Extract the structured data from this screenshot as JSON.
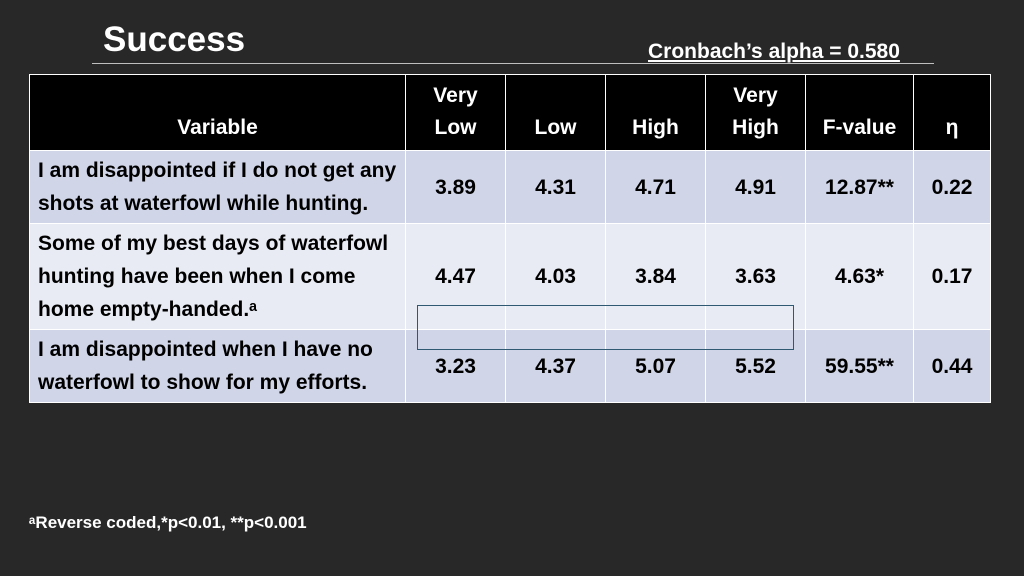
{
  "slide": {
    "title": "Success",
    "alpha_note": "Cronbach’s alpha = 0.580",
    "footnote": "ᵃReverse coded,*p<0.01, **p<0.001"
  },
  "table": {
    "headers": {
      "variable": "Variable",
      "very_low_1": "Very",
      "very_low_2": "Low",
      "low": "Low",
      "high": "High",
      "very_high_1": "Very",
      "very_high_2": "High",
      "f_value": "F-value",
      "eta": "η"
    },
    "rows": [
      {
        "variable": "I am disappointed if I do not get any shots at waterfowl while hunting.",
        "very_low": "3.89",
        "low": "4.31",
        "high": "4.71",
        "very_high": "4.91",
        "f_value": "12.87**",
        "eta": "0.22"
      },
      {
        "variable": "Some of my best days of waterfowl hunting have been when I come home empty-handed.ᵃ",
        "very_low": "4.47",
        "low": "4.03",
        "high": "3.84",
        "very_high": "3.63",
        "f_value": "4.63*",
        "eta": "0.17"
      },
      {
        "variable": "I am disappointed when I have no waterfowl to show for my efforts.",
        "very_low": "3.23",
        "low": "4.37",
        "high": "5.07",
        "very_high": "5.52",
        "f_value": "59.55**",
        "eta": "0.44"
      }
    ]
  },
  "colors": {
    "background": "#282828",
    "header_bg": "#000000",
    "row_dark": "#d0d5e7",
    "row_light": "#e9ebf4",
    "highlight_border": "#2f5872"
  }
}
